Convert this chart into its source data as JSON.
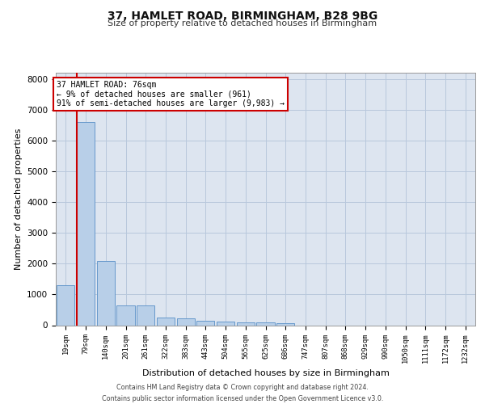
{
  "title1": "37, HAMLET ROAD, BIRMINGHAM, B28 9BG",
  "title2": "Size of property relative to detached houses in Birmingham",
  "xlabel": "Distribution of detached houses by size in Birmingham",
  "ylabel": "Number of detached properties",
  "bar_labels": [
    "19sqm",
    "79sqm",
    "140sqm",
    "201sqm",
    "261sqm",
    "322sqm",
    "383sqm",
    "443sqm",
    "504sqm",
    "565sqm",
    "625sqm",
    "686sqm",
    "747sqm",
    "807sqm",
    "868sqm",
    "929sqm",
    "990sqm",
    "1050sqm",
    "1111sqm",
    "1172sqm",
    "1232sqm"
  ],
  "bar_values": [
    1300,
    6600,
    2080,
    640,
    640,
    260,
    230,
    140,
    120,
    90,
    90,
    60,
    0,
    0,
    0,
    0,
    0,
    0,
    0,
    0,
    0
  ],
  "bar_color": "#b8cfe8",
  "bar_edge_color": "#6699cc",
  "vline_color": "#cc0000",
  "annotation_text": "37 HAMLET ROAD: 76sqm\n← 9% of detached houses are smaller (961)\n91% of semi-detached houses are larger (9,983) →",
  "annotation_box_color": "#ffffff",
  "annotation_box_edge": "#cc0000",
  "ylim": [
    0,
    8200
  ],
  "yticks": [
    0,
    1000,
    2000,
    3000,
    4000,
    5000,
    6000,
    7000,
    8000
  ],
  "bg_color": "#dde5f0",
  "footer1": "Contains HM Land Registry data © Crown copyright and database right 2024.",
  "footer2": "Contains public sector information licensed under the Open Government Licence v3.0."
}
